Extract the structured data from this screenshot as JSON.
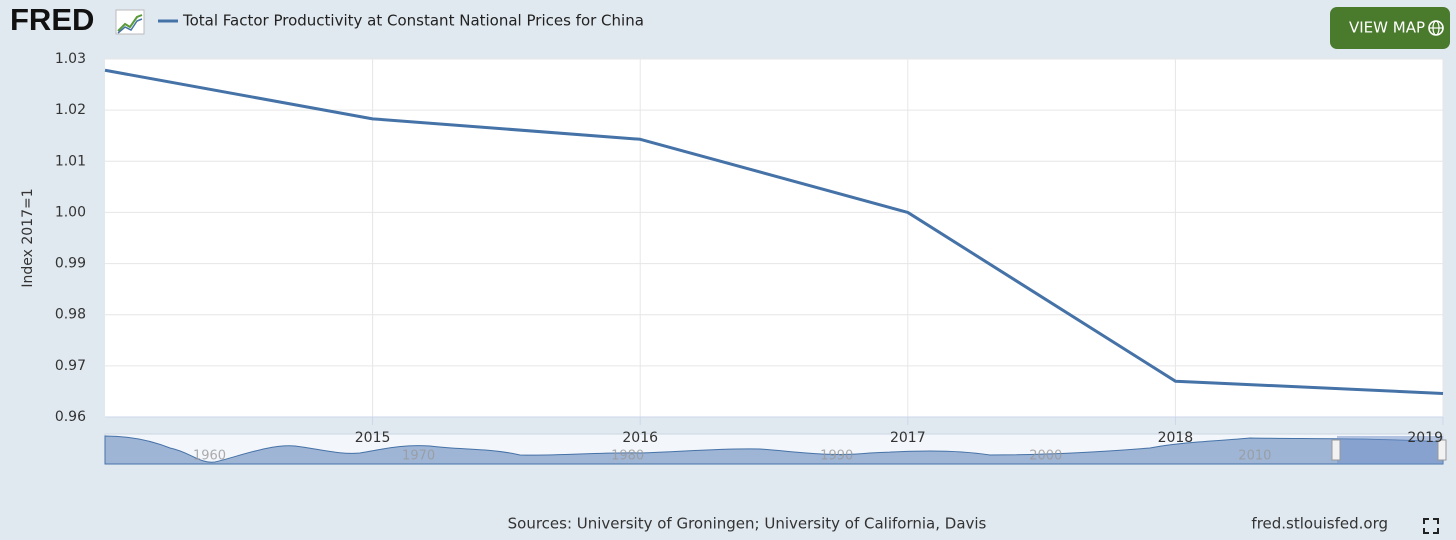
{
  "logo": "FRED",
  "button": "VIEW MAP",
  "source": "Sources: University of Groningen; University of California, Davis",
  "site": "fred.stlouisfed.org",
  "chart_data": {
    "type": "line",
    "y_label": "Index 2017=1",
    "x": [
      2014,
      2015,
      2016,
      2017,
      2018,
      2019
    ],
    "series": [
      {
        "name": "Total Factor Productivity at Constant National Prices for China",
        "color": "#4572a7",
        "values": [
          1.0278,
          1.0183,
          1.0143,
          1.0,
          0.967,
          0.9646
        ]
      }
    ],
    "xlim": [
      2014,
      2019
    ],
    "xticks": [
      2015,
      2016,
      2017,
      2018,
      2019
    ],
    "ylim": [
      0.96,
      1.03
    ],
    "yticks": [
      0.96,
      0.97,
      0.98,
      0.99,
      {
        "value": 1,
        "label": "1.00"
      },
      1.01,
      1.02,
      1.03
    ],
    "grid": true,
    "navigator": {
      "xlim": [
        1955,
        2019
      ],
      "xticks": [
        1960,
        1970,
        1980,
        1990,
        2000,
        2010
      ]
    }
  }
}
